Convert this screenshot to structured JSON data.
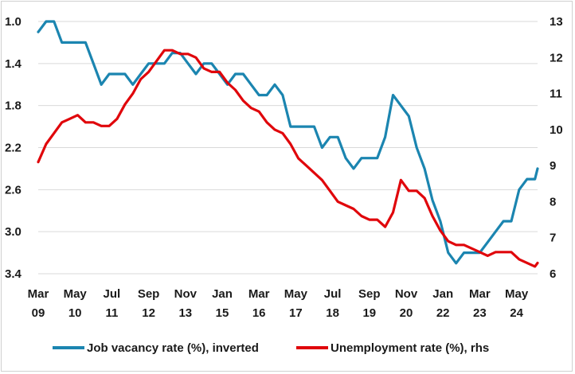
{
  "chart_data": {
    "type": "line",
    "title": "",
    "xlabel": "",
    "ylabel": "",
    "x_tick_labels": [
      {
        "month": "Mar",
        "year": "09"
      },
      {
        "month": "May",
        "year": "10"
      },
      {
        "month": "Jul",
        "year": "11"
      },
      {
        "month": "Sep",
        "year": "12"
      },
      {
        "month": "Nov",
        "year": "13"
      },
      {
        "month": "Jan",
        "year": "15"
      },
      {
        "month": "Mar",
        "year": "16"
      },
      {
        "month": "May",
        "year": "17"
      },
      {
        "month": "Jul",
        "year": "18"
      },
      {
        "month": "Sep",
        "year": "19"
      },
      {
        "month": "Nov",
        "year": "20"
      },
      {
        "month": "Jan",
        "year": "22"
      },
      {
        "month": "Mar",
        "year": "23"
      },
      {
        "month": "May",
        "year": "24"
      }
    ],
    "x_range": [
      "2009-03",
      "2025-01"
    ],
    "left_axis": {
      "ticks": [
        "1.0",
        "1.4",
        "1.8",
        "2.2",
        "2.6",
        "3.0",
        "3.4"
      ],
      "min": 1.0,
      "max": 3.4,
      "inverted": true
    },
    "right_axis": {
      "ticks": [
        "6",
        "7",
        "8",
        "9",
        "10",
        "11",
        "12",
        "13"
      ],
      "min": 6,
      "max": 13
    },
    "grid": "horizontal",
    "legend_position": "bottom",
    "series": [
      {
        "name": "Job vacancy rate (%), inverted",
        "axis": "left",
        "color": "#1b85b0",
        "points": [
          [
            "2009-03",
            1.1
          ],
          [
            "2009-06",
            1.0
          ],
          [
            "2009-09",
            1.0
          ],
          [
            "2009-12",
            1.2
          ],
          [
            "2010-03",
            1.2
          ],
          [
            "2010-06",
            1.2
          ],
          [
            "2010-09",
            1.2
          ],
          [
            "2010-12",
            1.4
          ],
          [
            "2011-03",
            1.6
          ],
          [
            "2011-06",
            1.5
          ],
          [
            "2011-09",
            1.5
          ],
          [
            "2011-12",
            1.5
          ],
          [
            "2012-03",
            1.6
          ],
          [
            "2012-06",
            1.5
          ],
          [
            "2012-09",
            1.4
          ],
          [
            "2012-12",
            1.4
          ],
          [
            "2013-03",
            1.4
          ],
          [
            "2013-06",
            1.3
          ],
          [
            "2013-09",
            1.3
          ],
          [
            "2013-12",
            1.4
          ],
          [
            "2014-03",
            1.5
          ],
          [
            "2014-06",
            1.4
          ],
          [
            "2014-09",
            1.4
          ],
          [
            "2014-12",
            1.5
          ],
          [
            "2015-03",
            1.6
          ],
          [
            "2015-06",
            1.5
          ],
          [
            "2015-09",
            1.5
          ],
          [
            "2015-12",
            1.6
          ],
          [
            "2016-03",
            1.7
          ],
          [
            "2016-06",
            1.7
          ],
          [
            "2016-09",
            1.6
          ],
          [
            "2016-12",
            1.7
          ],
          [
            "2017-03",
            2.0
          ],
          [
            "2017-06",
            2.0
          ],
          [
            "2017-09",
            2.0
          ],
          [
            "2017-12",
            2.0
          ],
          [
            "2018-03",
            2.2
          ],
          [
            "2018-06",
            2.1
          ],
          [
            "2018-09",
            2.1
          ],
          [
            "2018-12",
            2.3
          ],
          [
            "2019-03",
            2.4
          ],
          [
            "2019-06",
            2.3
          ],
          [
            "2019-09",
            2.3
          ],
          [
            "2019-12",
            2.3
          ],
          [
            "2020-03",
            2.1
          ],
          [
            "2020-06",
            1.7
          ],
          [
            "2020-09",
            1.8
          ],
          [
            "2020-12",
            1.9
          ],
          [
            "2021-03",
            2.2
          ],
          [
            "2021-06",
            2.4
          ],
          [
            "2021-09",
            2.7
          ],
          [
            "2021-12",
            2.9
          ],
          [
            "2022-03",
            3.2
          ],
          [
            "2022-06",
            3.3
          ],
          [
            "2022-09",
            3.2
          ],
          [
            "2022-12",
            3.2
          ],
          [
            "2023-03",
            3.2
          ],
          [
            "2023-06",
            3.1
          ],
          [
            "2023-09",
            3.0
          ],
          [
            "2023-12",
            2.9
          ],
          [
            "2024-03",
            2.9
          ],
          [
            "2024-06",
            2.6
          ],
          [
            "2024-09",
            2.5
          ],
          [
            "2024-12",
            2.5
          ],
          [
            "2025-03",
            2.4
          ]
        ]
      },
      {
        "name": "Unemployment rate (%), rhs",
        "axis": "right",
        "color": "#e0060b",
        "points": [
          [
            "2009-03",
            9.1
          ],
          [
            "2009-06",
            9.6
          ],
          [
            "2009-09",
            9.9
          ],
          [
            "2009-12",
            10.2
          ],
          [
            "2010-03",
            10.3
          ],
          [
            "2010-06",
            10.4
          ],
          [
            "2010-09",
            10.2
          ],
          [
            "2010-12",
            10.2
          ],
          [
            "2011-03",
            10.1
          ],
          [
            "2011-06",
            10.1
          ],
          [
            "2011-09",
            10.3
          ],
          [
            "2011-12",
            10.7
          ],
          [
            "2012-03",
            11.0
          ],
          [
            "2012-06",
            11.4
          ],
          [
            "2012-09",
            11.6
          ],
          [
            "2012-12",
            11.9
          ],
          [
            "2013-03",
            12.2
          ],
          [
            "2013-06",
            12.2
          ],
          [
            "2013-09",
            12.1
          ],
          [
            "2013-12",
            12.1
          ],
          [
            "2014-03",
            12.0
          ],
          [
            "2014-06",
            11.7
          ],
          [
            "2014-09",
            11.6
          ],
          [
            "2014-12",
            11.6
          ],
          [
            "2015-03",
            11.3
          ],
          [
            "2015-06",
            11.1
          ],
          [
            "2015-09",
            10.8
          ],
          [
            "2015-12",
            10.6
          ],
          [
            "2016-03",
            10.5
          ],
          [
            "2016-06",
            10.2
          ],
          [
            "2016-09",
            10.0
          ],
          [
            "2016-12",
            9.9
          ],
          [
            "2017-03",
            9.6
          ],
          [
            "2017-06",
            9.2
          ],
          [
            "2017-09",
            9.0
          ],
          [
            "2017-12",
            8.8
          ],
          [
            "2018-03",
            8.6
          ],
          [
            "2018-06",
            8.3
          ],
          [
            "2018-09",
            8.0
          ],
          [
            "2018-12",
            7.9
          ],
          [
            "2019-03",
            7.8
          ],
          [
            "2019-06",
            7.6
          ],
          [
            "2019-09",
            7.5
          ],
          [
            "2019-12",
            7.5
          ],
          [
            "2020-03",
            7.3
          ],
          [
            "2020-06",
            7.7
          ],
          [
            "2020-09",
            8.6
          ],
          [
            "2020-12",
            8.3
          ],
          [
            "2021-03",
            8.3
          ],
          [
            "2021-06",
            8.1
          ],
          [
            "2021-09",
            7.6
          ],
          [
            "2021-12",
            7.2
          ],
          [
            "2022-03",
            6.9
          ],
          [
            "2022-06",
            6.8
          ],
          [
            "2022-09",
            6.8
          ],
          [
            "2022-12",
            6.7
          ],
          [
            "2023-03",
            6.6
          ],
          [
            "2023-06",
            6.5
          ],
          [
            "2023-09",
            6.6
          ],
          [
            "2023-12",
            6.6
          ],
          [
            "2024-03",
            6.6
          ],
          [
            "2024-06",
            6.4
          ],
          [
            "2024-09",
            6.3
          ],
          [
            "2024-12",
            6.2
          ],
          [
            "2025-03",
            6.3
          ]
        ]
      }
    ]
  }
}
